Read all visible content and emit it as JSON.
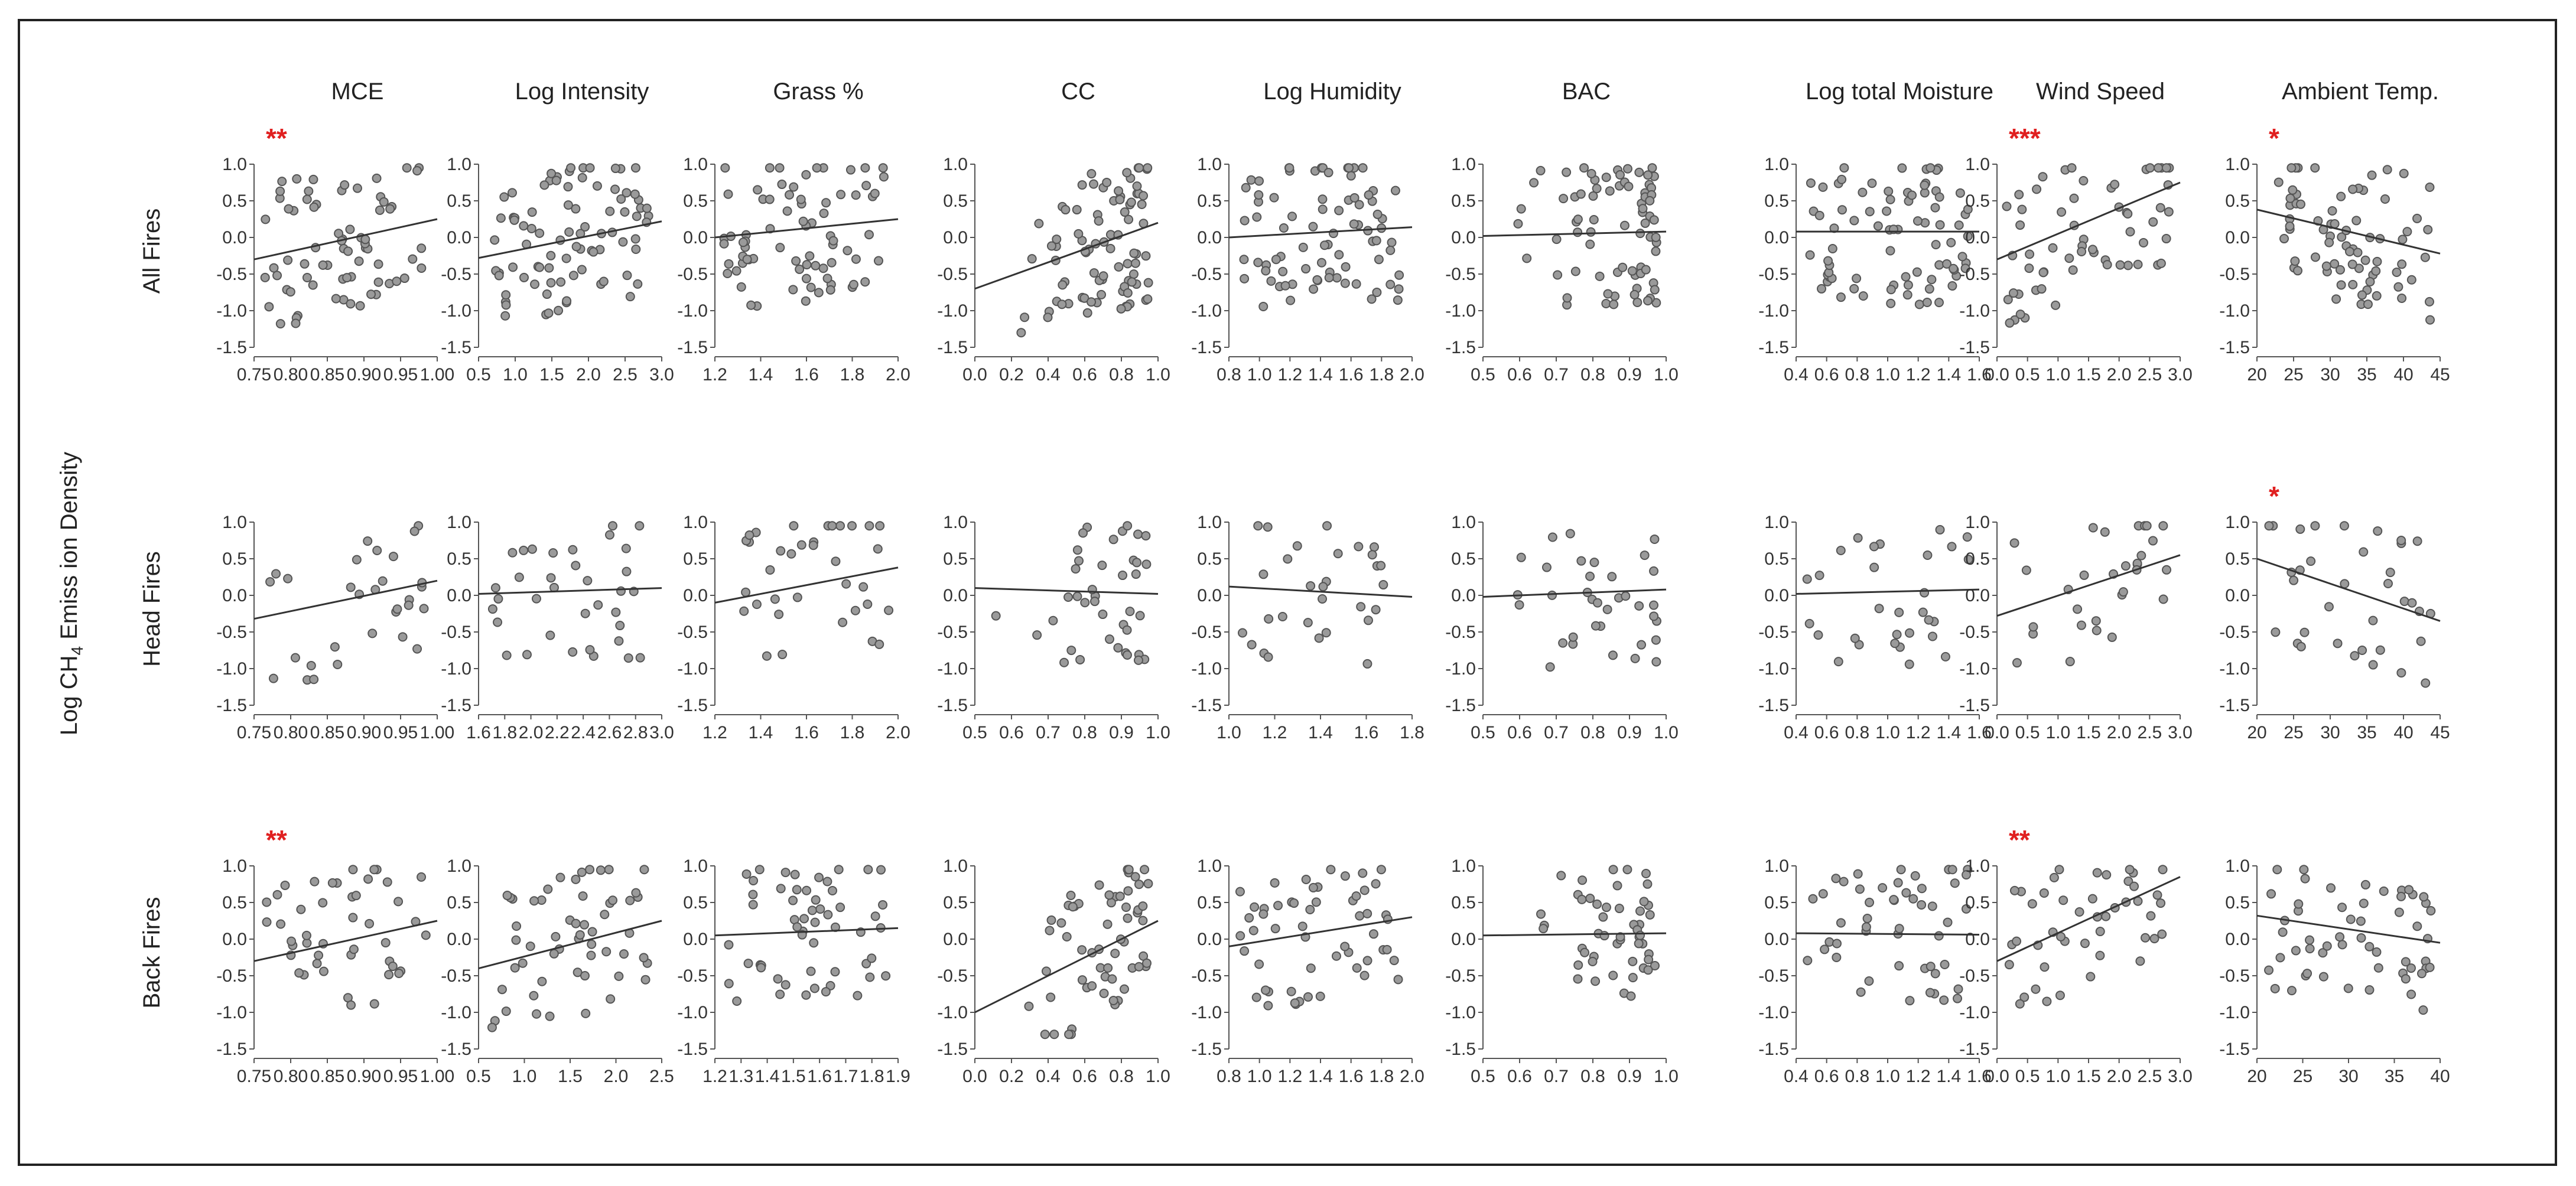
{
  "figure": {
    "y_axis_title_prefix": "Log CH",
    "y_axis_title_sub": "4",
    "y_axis_title_suffix": " Emiss ion Density"
  },
  "chart_data": {
    "type": "scatter",
    "rows": [
      "All Fires",
      "Head Fires",
      "Back Fires"
    ],
    "columns": [
      {
        "title": "MCE",
        "xticks": [
          [
            "0.75",
            "0.80",
            "0.85",
            "0.90",
            "0.95",
            "1.00"
          ],
          [
            "0.75",
            "0.80",
            "0.85",
            "0.90",
            "0.95",
            "1.00"
          ],
          [
            "0.75",
            "0.80",
            "0.85",
            "0.90",
            "0.95",
            "1.00"
          ]
        ]
      },
      {
        "title": "Log Intensity",
        "xticks": [
          [
            "0.5",
            "1.0",
            "1.5",
            "2.0",
            "2.5",
            "3.0"
          ],
          [
            "1.6",
            "1.8",
            "2.0",
            "2.2",
            "2.4",
            "2.6",
            "2.8",
            "3.0"
          ],
          [
            "0.5",
            "1.0",
            "1.5",
            "2.0",
            "2.5"
          ]
        ]
      },
      {
        "title": "Grass %",
        "xticks": [
          [
            "1.2",
            "1.4",
            "1.6",
            "1.8",
            "2.0"
          ],
          [
            "1.2",
            "1.4",
            "1.6",
            "1.8",
            "2.0"
          ],
          [
            "1.2",
            "1.3",
            "1.4",
            "1.5",
            "1.6",
            "1.7",
            "1.8",
            "1.9"
          ]
        ]
      },
      {
        "title": "CC",
        "xticks": [
          [
            "0.0",
            "0.2",
            "0.4",
            "0.6",
            "0.8",
            "1.0"
          ],
          [
            "0.5",
            "0.6",
            "0.7",
            "0.8",
            "0.9",
            "1.0"
          ],
          [
            "0.0",
            "0.2",
            "0.4",
            "0.6",
            "0.8",
            "1.0"
          ]
        ]
      },
      {
        "title": "Log Humidity",
        "xticks": [
          [
            "0.8",
            "1.0",
            "1.2",
            "1.4",
            "1.6",
            "1.8",
            "2.0"
          ],
          [
            "1.0",
            "1.2",
            "1.4",
            "1.6",
            "1.8"
          ],
          [
            "0.8",
            "1.0",
            "1.2",
            "1.4",
            "1.6",
            "1.8",
            "2.0"
          ]
        ]
      },
      {
        "title": "BAC",
        "xticks": [
          [
            "0.5",
            "0.6",
            "0.7",
            "0.8",
            "0.9",
            "1.0"
          ],
          [
            "0.5",
            "0.6",
            "0.7",
            "0.8",
            "0.9",
            "1.0"
          ],
          [
            "0.5",
            "0.6",
            "0.7",
            "0.8",
            "0.9",
            "1.0"
          ]
        ]
      },
      {
        "title": "Log total Moisture",
        "xticks": [
          [
            "0.4",
            "0.6",
            "0.8",
            "1.0",
            "1.2",
            "1.4",
            "1.6"
          ],
          [
            "0.4",
            "0.6",
            "0.8",
            "1.0",
            "1.2",
            "1.4",
            "1.6"
          ],
          [
            "0.4",
            "0.6",
            "0.8",
            "1.0",
            "1.2",
            "1.4",
            "1.6"
          ]
        ]
      },
      {
        "title": "Wind Speed",
        "xticks": [
          [
            "0.0",
            "0.5",
            "1.0",
            "1.5",
            "2.0",
            "2.5",
            "3.0"
          ],
          [
            "0.0",
            "0.5",
            "1.0",
            "1.5",
            "2.0",
            "2.5",
            "3.0"
          ],
          [
            "0.0",
            "0.5",
            "1.0",
            "1.5",
            "2.0",
            "2.5",
            "3.0"
          ]
        ]
      },
      {
        "title": "Ambient Temp.",
        "xticks": [
          [
            "20",
            "25",
            "30",
            "35",
            "40",
            "45"
          ],
          [
            "20",
            "25",
            "30",
            "35",
            "40",
            "45"
          ],
          [
            "20",
            "25",
            "30",
            "35",
            "40"
          ]
        ]
      }
    ],
    "yticks": [
      "1.0",
      "0.5",
      "0.0",
      "-0.5",
      "-1.0",
      "-1.5"
    ],
    "ylim": [
      -1.5,
      1.0
    ],
    "significance": [
      {
        "row": 0,
        "col": 0,
        "label": "**"
      },
      {
        "row": 0,
        "col": 7,
        "label": "***"
      },
      {
        "row": 0,
        "col": 8,
        "label": "*"
      },
      {
        "row": 1,
        "col": 8,
        "label": "*"
      },
      {
        "row": 2,
        "col": 0,
        "label": "**"
      },
      {
        "row": 2,
        "col": 7,
        "label": "**"
      }
    ],
    "fits": [
      [
        [
          -0.3,
          0.25
        ],
        [
          -0.28,
          0.22
        ],
        [
          0.0,
          0.25
        ],
        [
          -0.7,
          0.2
        ],
        [
          0.0,
          0.14
        ],
        [
          0.02,
          0.08
        ],
        [
          0.08,
          0.08
        ],
        [
          -0.3,
          0.75
        ],
        [
          0.38,
          -0.22
        ]
      ],
      [
        [
          -0.32,
          0.2
        ],
        [
          0.02,
          0.1
        ],
        [
          -0.1,
          0.38
        ],
        [
          0.1,
          0.02
        ],
        [
          0.12,
          -0.02
        ],
        [
          -0.02,
          0.08
        ],
        [
          0.02,
          0.08
        ],
        [
          -0.28,
          0.55
        ],
        [
          0.5,
          -0.35
        ]
      ],
      [
        [
          -0.3,
          0.25
        ],
        [
          -0.4,
          0.25
        ],
        [
          0.05,
          0.15
        ],
        [
          -1.0,
          0.25
        ],
        [
          -0.1,
          0.3
        ],
        [
          0.05,
          0.08
        ],
        [
          0.08,
          0.06
        ],
        [
          -0.3,
          0.85
        ],
        [
          0.32,
          -0.05
        ]
      ]
    ],
    "counts": [
      [
        70,
        85,
        75,
        85,
        80,
        75,
        80,
        60,
        75
      ],
      [
        30,
        35,
        35,
        40,
        30,
        35,
        30,
        30,
        35
      ],
      [
        45,
        55,
        55,
        60,
        55,
        50,
        50,
        45,
        55
      ]
    ]
  }
}
